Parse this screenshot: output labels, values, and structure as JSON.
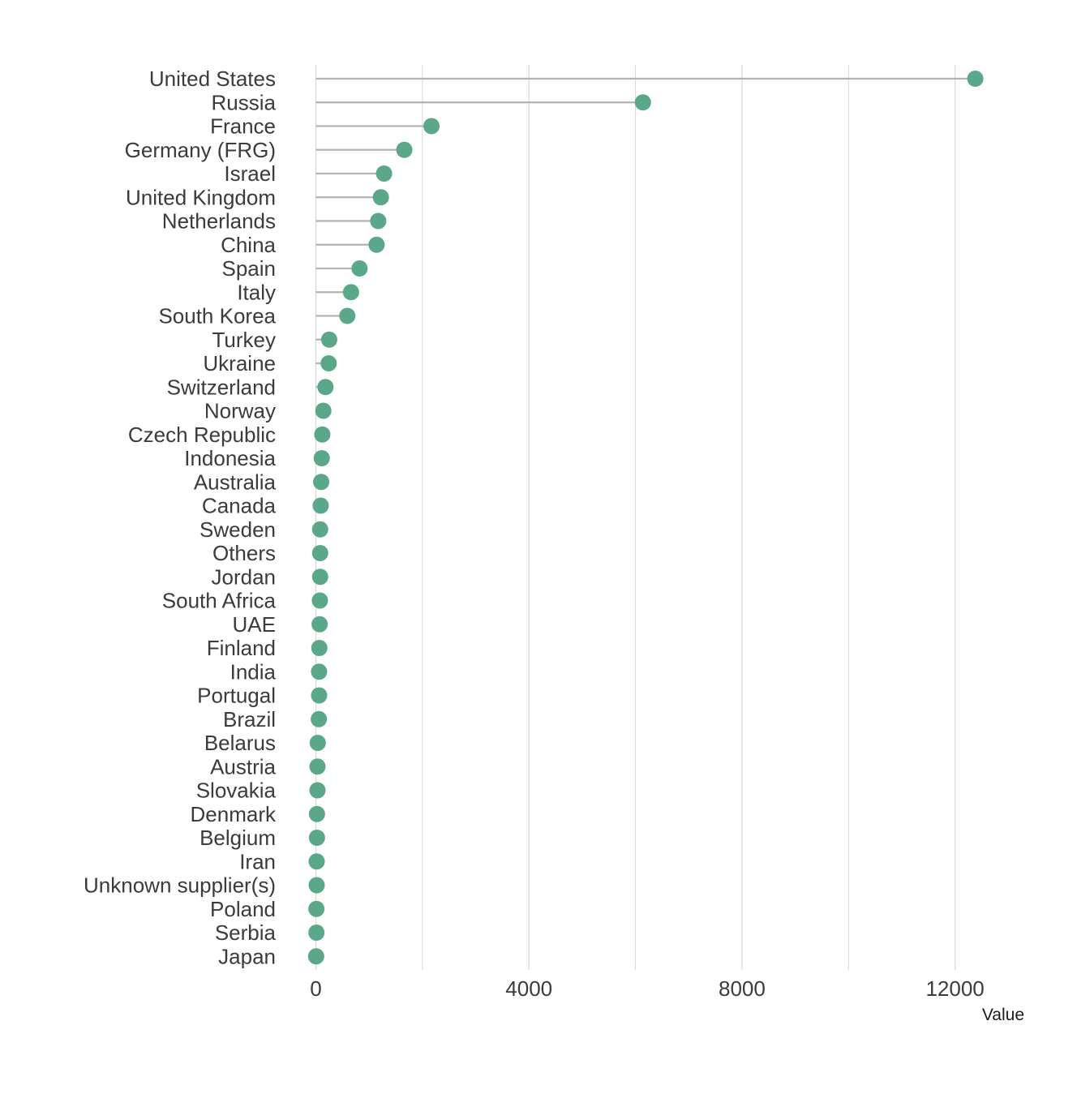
{
  "chart_data": {
    "type": "lollipop",
    "title": "",
    "xlabel": "Value",
    "ylabel": "",
    "xlim": [
      0,
      13300
    ],
    "x_ticks": [
      0,
      4000,
      8000,
      12000
    ],
    "x_tick_labels": [
      "0",
      "4000",
      "8000",
      "12000"
    ],
    "minor_gridlines": [
      2000,
      6000,
      10000
    ],
    "grid": "vertical",
    "legend": "none",
    "colors": {
      "point": "#5aa78a",
      "stem": "#b3b3b3",
      "grid": "#d9d9d9",
      "label": "#3b3b3b"
    },
    "categories": [
      "United States",
      "Russia",
      "France",
      "Germany (FRG)",
      "Israel",
      "United Kingdom",
      "Netherlands",
      "China",
      "Spain",
      "Italy",
      "South Korea",
      "Turkey",
      "Ukraine",
      "Switzerland",
      "Norway",
      "Czech Republic",
      "Indonesia",
      "Australia",
      "Canada",
      "Sweden",
      "Others",
      "Jordan",
      "South Africa",
      "UAE",
      "Finland",
      "India",
      "Portugal",
      "Brazil",
      "Belarus",
      "Austria",
      "Slovakia",
      "Denmark",
      "Belgium",
      "Iran",
      "Unknown supplier(s)",
      "Poland",
      "Serbia",
      "Japan"
    ],
    "values": [
      12380,
      6140,
      2170,
      1660,
      1280,
      1220,
      1170,
      1140,
      820,
      660,
      590,
      250,
      240,
      180,
      140,
      120,
      110,
      100,
      90,
      80,
      80,
      80,
      75,
      70,
      65,
      60,
      60,
      55,
      35,
      30,
      30,
      20,
      20,
      15,
      15,
      10,
      10,
      5
    ]
  }
}
